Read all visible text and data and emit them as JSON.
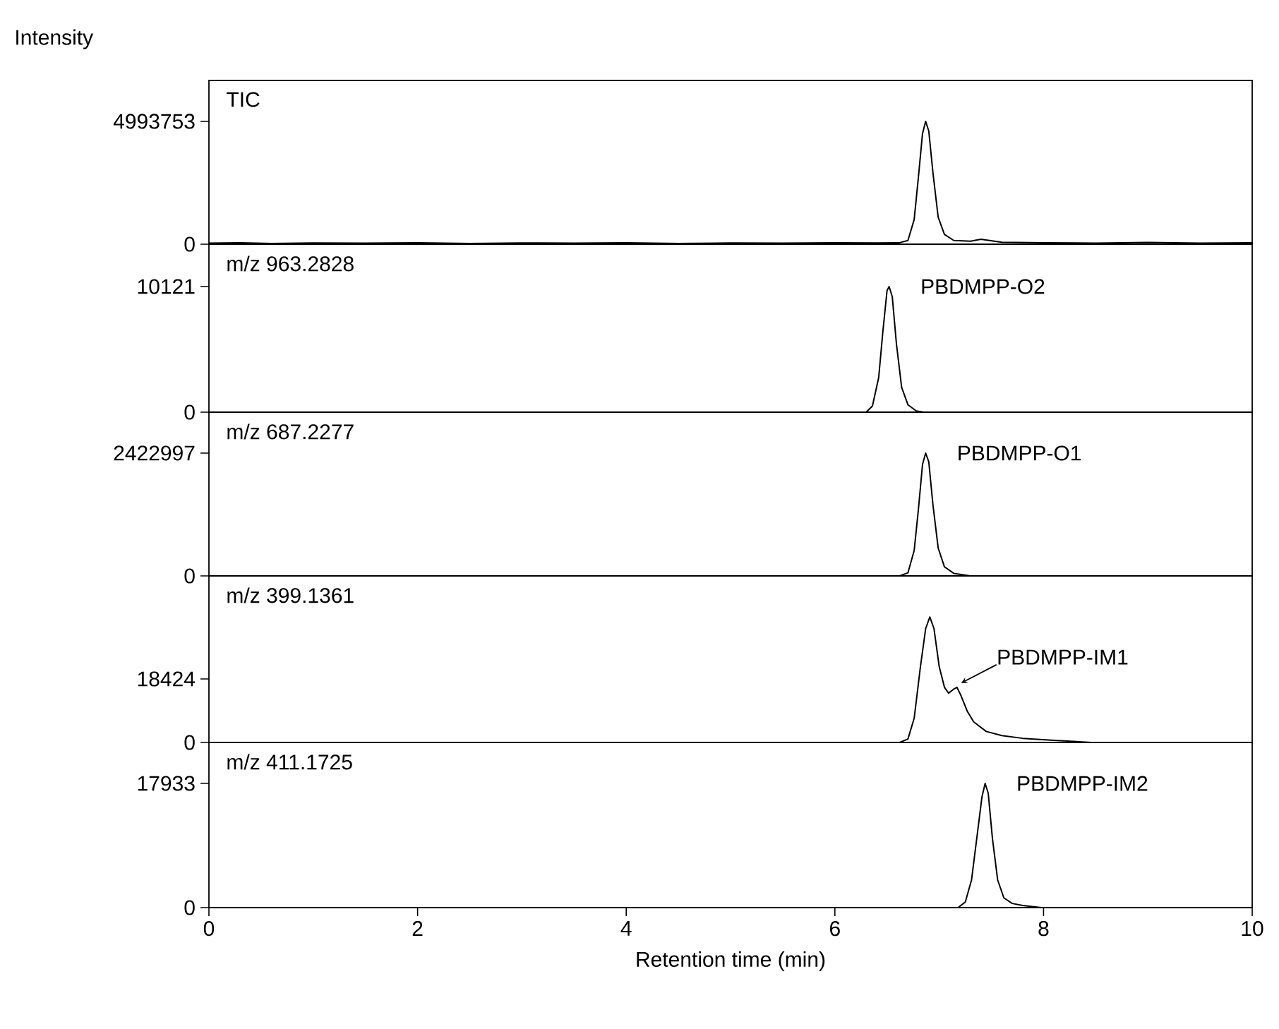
{
  "chart_data": [
    {
      "type": "line",
      "title": "TIC",
      "ylabel": "Intensity",
      "color": "#000000",
      "xlim": [
        0,
        10
      ],
      "ylim": [
        0,
        6658000
      ],
      "yticks": [
        0,
        4993753
      ],
      "tick_labels": "y",
      "x": [
        0,
        0.3,
        0.6,
        1.0,
        1.5,
        2,
        2.5,
        3,
        3.5,
        4,
        4.5,
        5,
        5.5,
        6,
        6.4,
        6.62,
        6.7,
        6.76,
        6.8,
        6.84,
        6.87,
        6.9,
        6.94,
        6.99,
        7.05,
        7.14,
        7.3,
        7.4,
        7.6,
        8,
        8.5,
        9,
        9.5,
        10
      ],
      "values": [
        40000,
        60000,
        30000,
        50000,
        40000,
        60000,
        30000,
        50000,
        40000,
        60000,
        30000,
        50000,
        40000,
        60000,
        50000,
        60000,
        150000,
        1000000,
        2700000,
        4500000,
        4993753,
        4600000,
        2900000,
        1100000,
        400000,
        150000,
        120000,
        200000,
        80000,
        60000,
        40000,
        70000,
        40000,
        60000
      ]
    },
    {
      "type": "line",
      "title": "m/z 963.2828",
      "color": "#000000",
      "xlim": [
        0,
        10
      ],
      "ylim": [
        0,
        13533
      ],
      "yticks": [
        0,
        10121
      ],
      "tick_labels": "y",
      "x": [
        0,
        6.3,
        6.36,
        6.42,
        6.46,
        6.5,
        6.52,
        6.55,
        6.59,
        6.64,
        6.7,
        6.78,
        6.85,
        10
      ],
      "values": [
        0,
        0,
        500,
        2800,
        6500,
        9800,
        10121,
        9300,
        5500,
        2000,
        600,
        100,
        0,
        0
      ],
      "annotations": [
        {
          "text": "PBDMPP-O2",
          "x": 6.52,
          "y": 10121
        }
      ]
    },
    {
      "type": "line",
      "title": "m/z 687.2277",
      "color": "#000000",
      "xlim": [
        0,
        10
      ],
      "ylim": [
        0,
        3230663
      ],
      "yticks": [
        0,
        2422997
      ],
      "tick_labels": "y",
      "x": [
        0,
        6.62,
        6.7,
        6.76,
        6.8,
        6.84,
        6.87,
        6.9,
        6.94,
        6.99,
        7.05,
        7.14,
        7.3,
        10
      ],
      "values": [
        0,
        0,
        60000,
        500000,
        1300000,
        2200000,
        2422997,
        2250000,
        1400000,
        550000,
        180000,
        50000,
        0,
        0
      ],
      "annotations": [
        {
          "text": "PBDMPP-O1",
          "x": 6.87,
          "y": 2422997
        }
      ]
    },
    {
      "type": "line",
      "title": "m/z 399.1361",
      "color": "#000000",
      "xlim": [
        0,
        10
      ],
      "ylim": [
        0,
        48312
      ],
      "yticks": [
        0,
        18424
      ],
      "tick_labels": "y",
      "x": [
        0,
        6.62,
        6.7,
        6.76,
        6.82,
        6.87,
        6.91,
        6.95,
        7.0,
        7.05,
        7.09,
        7.14,
        7.17,
        7.21,
        7.27,
        7.33,
        7.45,
        7.6,
        7.8,
        8.1,
        8.46,
        10
      ],
      "values": [
        0,
        0,
        1000,
        7000,
        22000,
        33000,
        36400,
        33000,
        22000,
        16000,
        14300,
        15500,
        16000,
        13500,
        9000,
        6000,
        3200,
        2000,
        1200,
        600,
        0,
        0
      ],
      "annotations": [
        {
          "text": "PBDMPP-IM1",
          "x": 7.17,
          "y": 16000
        }
      ]
    },
    {
      "type": "line",
      "title": "m/z 411.1725",
      "xlabel": "Retention time (min)",
      "color": "#000000",
      "xlim": [
        0,
        10
      ],
      "ylim": [
        0,
        23843
      ],
      "xticks": [
        0,
        2,
        4,
        6,
        8,
        10
      ],
      "yticks": [
        0,
        17933
      ],
      "x": [
        0,
        7.18,
        7.25,
        7.31,
        7.36,
        7.41,
        7.44,
        7.47,
        7.51,
        7.56,
        7.62,
        7.7,
        7.8,
        7.98,
        10
      ],
      "values": [
        0,
        0,
        800,
        4000,
        10000,
        16000,
        17933,
        16500,
        10000,
        4000,
        1400,
        600,
        300,
        0,
        0
      ],
      "annotations": [
        {
          "text": "PBDMPP-IM2",
          "x": 7.44,
          "y": 17933
        }
      ]
    }
  ]
}
